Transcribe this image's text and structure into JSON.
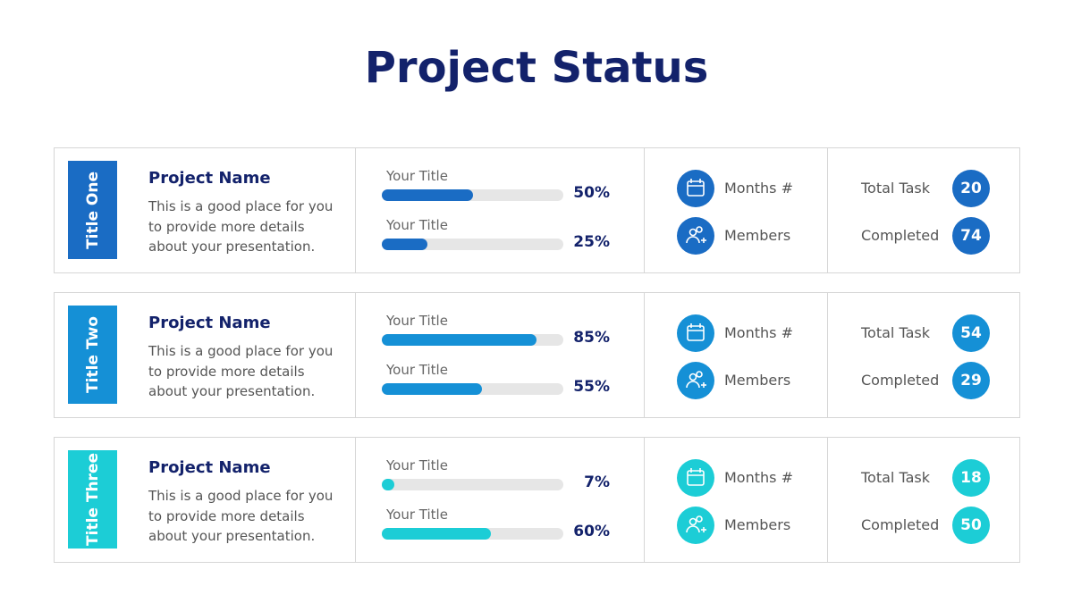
{
  "title": "Project Status",
  "rows": [
    {
      "tag": "Title One",
      "color": "#1a6cc4",
      "name": "Project Name",
      "description": "This is a good place for you to provide more details about your presentation.",
      "bars": [
        {
          "title": "Your Title",
          "value": 50,
          "value_label": "50%"
        },
        {
          "title": "Your Title",
          "value": 25,
          "value_label": "25%"
        }
      ],
      "months_label": "Months #",
      "members_label": "Members",
      "total_label": "Total Task",
      "total": 20,
      "completed_label": "Completed",
      "completed": 74
    },
    {
      "tag": "Title Two",
      "color": "#1590d6",
      "name": "Project Name",
      "description": "This is a good place for you to provide more details about your presentation.",
      "bars": [
        {
          "title": "Your Title",
          "value": 85,
          "value_label": "85%"
        },
        {
          "title": "Your Title",
          "value": 55,
          "value_label": "55%"
        }
      ],
      "months_label": "Months #",
      "members_label": "Members",
      "total_label": "Total Task",
      "total": 54,
      "completed_label": "Completed",
      "completed": 29
    },
    {
      "tag": "Title Three",
      "color": "#1ccdd6",
      "name": "Project Name",
      "description": "This is a good place for you to provide more details about your presentation.",
      "bars": [
        {
          "title": "Your Title",
          "value": 7,
          "value_label": "7%"
        },
        {
          "title": "Your Title",
          "value": 60,
          "value_label": "60%"
        }
      ],
      "months_label": "Months #",
      "members_label": "Members",
      "total_label": "Total Task",
      "total": 18,
      "completed_label": "Completed",
      "completed": 50
    }
  ]
}
